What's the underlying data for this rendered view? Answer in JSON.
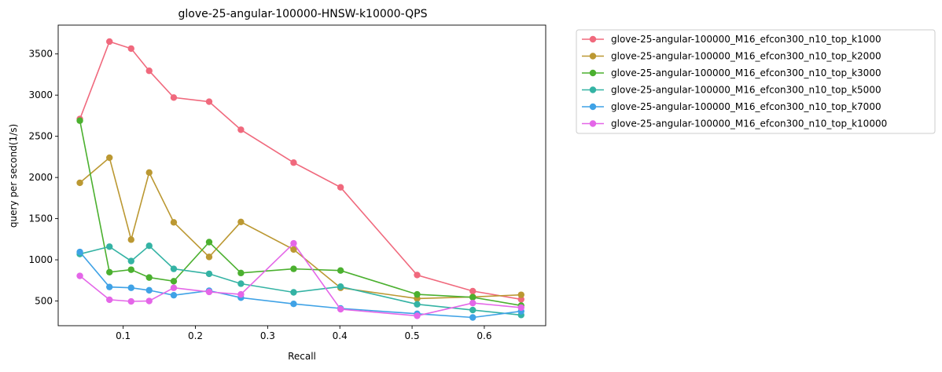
{
  "chart_data": {
    "type": "line",
    "title": "glove-25-angular-100000-HNSW-k10000-QPS",
    "xlabel": "Recall",
    "ylabel": "query per second(1/s)",
    "xlim": [
      0.01,
      0.685
    ],
    "ylim": [
      200,
      3850
    ],
    "xticks": [
      0.1,
      0.2,
      0.3,
      0.4,
      0.5,
      0.6
    ],
    "xtick_labels": [
      "0.1",
      "0.2",
      "0.3",
      "0.4",
      "0.5",
      "0.6"
    ],
    "yticks": [
      500,
      1000,
      1500,
      2000,
      2500,
      3000,
      3500
    ],
    "ytick_labels": [
      "500",
      "1000",
      "1500",
      "2000",
      "2500",
      "3000",
      "3500"
    ],
    "grid": false,
    "legend_position": "outside-top-right",
    "series": [
      {
        "name": "glove-25-angular-100000_M16_efcon300_n10_top_k1000",
        "color": "#f0697d",
        "x": [
          0.04,
          0.081,
          0.111,
          0.136,
          0.17,
          0.219,
          0.263,
          0.336,
          0.401,
          0.507,
          0.584,
          0.651
        ],
        "y": [
          2710,
          3650,
          3565,
          3295,
          2970,
          2920,
          2580,
          2180,
          1880,
          815,
          620,
          520
        ]
      },
      {
        "name": "glove-25-angular-100000_M16_efcon300_n10_top_k2000",
        "color": "#bb9832",
        "x": [
          0.04,
          0.081,
          0.111,
          0.136,
          0.17,
          0.219,
          0.263,
          0.336,
          0.401,
          0.507,
          0.584,
          0.651
        ],
        "y": [
          1935,
          2240,
          1245,
          2060,
          1455,
          1035,
          1460,
          1125,
          660,
          530,
          550,
          575
        ]
      },
      {
        "name": "glove-25-angular-100000_M16_efcon300_n10_top_k3000",
        "color": "#4bb02f",
        "x": [
          0.04,
          0.081,
          0.111,
          0.136,
          0.17,
          0.219,
          0.263,
          0.336,
          0.401,
          0.507,
          0.584,
          0.651
        ],
        "y": [
          2690,
          850,
          880,
          785,
          740,
          1215,
          840,
          890,
          870,
          580,
          545,
          445
        ]
      },
      {
        "name": "glove-25-angular-100000_M16_efcon300_n10_top_k5000",
        "color": "#34b3a4",
        "x": [
          0.04,
          0.081,
          0.111,
          0.136,
          0.17,
          0.219,
          0.263,
          0.336,
          0.401,
          0.507,
          0.584,
          0.651
        ],
        "y": [
          1070,
          1160,
          985,
          1170,
          890,
          830,
          710,
          605,
          675,
          460,
          390,
          330
        ]
      },
      {
        "name": "glove-25-angular-100000_M16_efcon300_n10_top_k7000",
        "color": "#3fa2e6",
        "x": [
          0.04,
          0.081,
          0.111,
          0.136,
          0.17,
          0.219,
          0.263,
          0.336,
          0.401,
          0.507,
          0.584,
          0.651
        ],
        "y": [
          1095,
          670,
          660,
          630,
          570,
          625,
          540,
          465,
          410,
          345,
          300,
          375
        ]
      },
      {
        "name": "glove-25-angular-100000_M16_efcon300_n10_top_k10000",
        "color": "#e466e8",
        "x": [
          0.04,
          0.081,
          0.111,
          0.136,
          0.17,
          0.219,
          0.263,
          0.336,
          0.401,
          0.507,
          0.584,
          0.651
        ],
        "y": [
          805,
          515,
          495,
          500,
          660,
          610,
          580,
          1200,
          400,
          320,
          475,
          420
        ]
      }
    ]
  }
}
